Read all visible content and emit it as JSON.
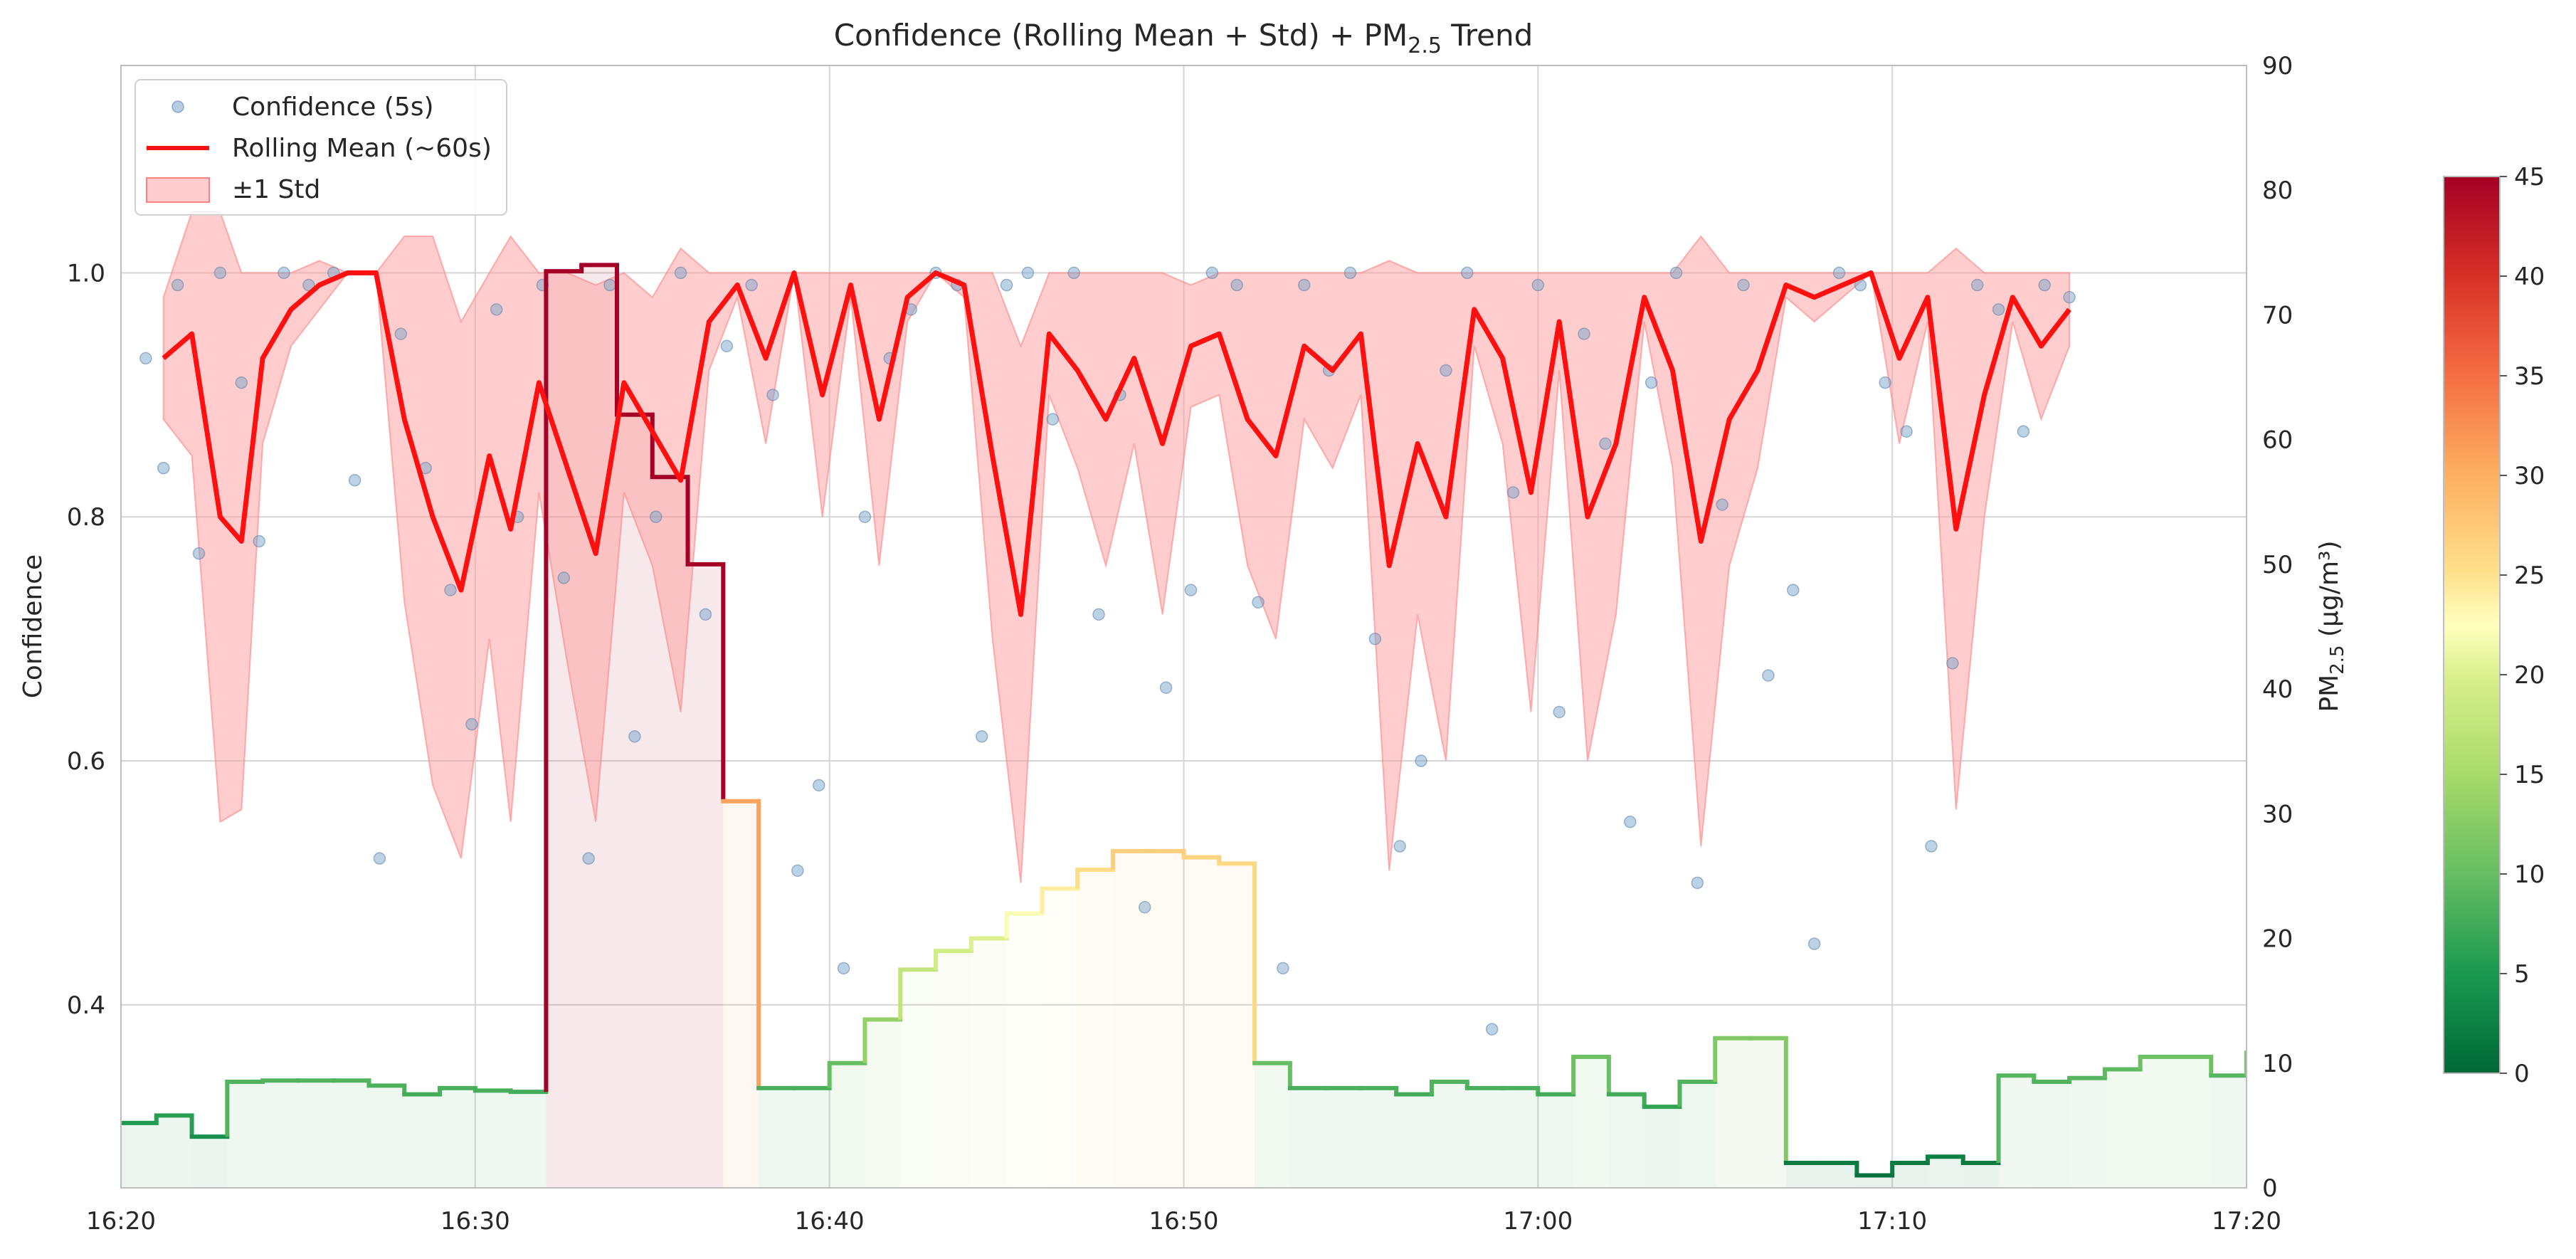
{
  "chart_data": {
    "type": "line",
    "title": "Confidence (Rolling Mean + Std) + PM",
    "title_sub": "2.5",
    "title_suffix": " Trend",
    "xlabel": "",
    "ylabel": "Confidence",
    "y2label_prefix": "PM",
    "y2label_sub": "2.5",
    "y2label_suffix": " (μg/m³)",
    "x_tick_labels": [
      "16:20",
      "16:30",
      "16:40",
      "16:50",
      "17:00",
      "17:10",
      "17:20"
    ],
    "xlim_minutes": [
      0,
      60
    ],
    "ylim": [
      0.25,
      1.17
    ],
    "y_ticks": [
      "0.4",
      "0.6",
      "0.8",
      "1.0"
    ],
    "y2lim": [
      0,
      90
    ],
    "y2_ticks": [
      "0",
      "10",
      "20",
      "30",
      "40",
      "50",
      "60",
      "70",
      "80",
      "90"
    ],
    "grid": true,
    "legend_position": "top-left",
    "colorbar": {
      "range": [
        0,
        45
      ],
      "ticks": [
        "0",
        "5",
        "10",
        "15",
        "20",
        "25",
        "30",
        "35",
        "40",
        "45"
      ],
      "colormap": "RdYlGn_r"
    },
    "colors": {
      "scatter": "#7aa5cc",
      "rolling_mean": "#ff1010",
      "std_band": "#ff9c9c"
    },
    "series": [
      {
        "name": "Confidence (5s)",
        "kind": "scatter",
        "x_minutes": [
          0.7,
          1.2,
          1.6,
          2.2,
          2.8,
          3.4,
          3.9,
          4.6,
          5.3,
          6.0,
          6.6,
          7.3,
          7.9,
          8.6,
          9.3,
          9.9,
          10.6,
          11.2,
          11.9,
          12.5,
          13.2,
          13.8,
          14.5,
          15.1,
          15.8,
          16.5,
          17.1,
          17.8,
          18.4,
          19.1,
          19.7,
          20.4,
          21.0,
          21.7,
          22.3,
          23.0,
          23.6,
          24.3,
          25.0,
          25.6,
          26.3,
          26.9,
          27.6,
          28.2,
          28.9,
          29.5,
          30.2,
          30.8,
          31.5,
          32.1,
          32.8,
          33.4,
          34.1,
          34.7,
          35.4,
          36.1,
          36.7,
          37.4,
          38.0,
          38.7,
          39.3,
          40.0,
          40.6,
          41.3,
          41.9,
          42.6,
          43.2,
          43.9,
          44.5,
          45.2,
          45.8,
          46.5,
          47.2,
          47.8,
          48.5,
          49.1,
          49.8,
          50.4,
          51.1,
          51.7,
          52.4,
          53.0,
          53.7,
          54.3,
          55.0
        ],
        "y": [
          0.93,
          0.84,
          0.99,
          0.77,
          1.0,
          0.91,
          0.78,
          1.0,
          0.99,
          1.0,
          0.83,
          0.52,
          0.95,
          0.84,
          0.74,
          0.63,
          0.97,
          0.8,
          0.99,
          0.75,
          0.52,
          0.99,
          0.62,
          0.8,
          1.0,
          0.72,
          0.94,
          0.99,
          0.9,
          0.51,
          0.58,
          0.43,
          0.8,
          0.93,
          0.97,
          1.0,
          0.99,
          0.62,
          0.99,
          1.0,
          0.88,
          1.0,
          0.72,
          0.9,
          0.48,
          0.66,
          0.74,
          1.0,
          0.99,
          0.73,
          0.43,
          0.99,
          0.92,
          1.0,
          0.7,
          0.53,
          0.6,
          0.92,
          1.0,
          0.38,
          0.82,
          0.99,
          0.64,
          0.95,
          0.86,
          0.55,
          0.91,
          1.0,
          0.5,
          0.81,
          0.99,
          0.67,
          0.74,
          0.45,
          1.0,
          0.99,
          0.91,
          0.87,
          0.53,
          0.68,
          0.99,
          0.97,
          0.87,
          0.99,
          0.98
        ]
      },
      {
        "name": "Rolling Mean (~60s)",
        "kind": "line",
        "x_minutes": [
          1.2,
          2.0,
          2.8,
          3.4,
          4.0,
          4.8,
          5.6,
          6.4,
          7.2,
          8.0,
          8.8,
          9.6,
          10.4,
          11.0,
          11.8,
          12.6,
          13.4,
          14.2,
          15.0,
          15.8,
          16.6,
          17.4,
          18.2,
          19.0,
          19.8,
          20.6,
          21.4,
          22.2,
          23.0,
          23.8,
          24.6,
          25.4,
          26.2,
          27.0,
          27.8,
          28.6,
          29.4,
          30.2,
          31.0,
          31.8,
          32.6,
          33.4,
          34.2,
          35.0,
          35.8,
          36.6,
          37.4,
          38.2,
          39.0,
          39.8,
          40.6,
          41.4,
          42.2,
          43.0,
          43.8,
          44.6,
          45.4,
          46.2,
          47.0,
          47.8,
          48.6,
          49.4,
          50.2,
          51.0,
          51.8,
          52.6,
          53.4,
          54.2,
          55.0
        ],
        "y": [
          0.93,
          0.95,
          0.8,
          0.78,
          0.93,
          0.97,
          0.99,
          1.0,
          1.0,
          0.88,
          0.8,
          0.74,
          0.85,
          0.79,
          0.91,
          0.84,
          0.77,
          0.91,
          0.87,
          0.83,
          0.96,
          0.99,
          0.93,
          1.0,
          0.9,
          0.99,
          0.88,
          0.98,
          1.0,
          0.99,
          0.85,
          0.72,
          0.95,
          0.92,
          0.88,
          0.93,
          0.86,
          0.94,
          0.95,
          0.88,
          0.85,
          0.94,
          0.92,
          0.95,
          0.76,
          0.86,
          0.8,
          0.97,
          0.93,
          0.82,
          0.96,
          0.8,
          0.86,
          0.98,
          0.92,
          0.78,
          0.88,
          0.92,
          0.99,
          0.98,
          0.99,
          1.0,
          0.93,
          0.98,
          0.79,
          0.9,
          0.98,
          0.94,
          0.97
        ]
      },
      {
        "name": "±1 Std",
        "kind": "band",
        "x_minutes": [
          1.2,
          2.0,
          2.8,
          3.4,
          4.0,
          4.8,
          5.6,
          6.4,
          7.2,
          8.0,
          8.8,
          9.6,
          10.4,
          11.0,
          11.8,
          12.6,
          13.4,
          14.2,
          15.0,
          15.8,
          16.6,
          17.4,
          18.2,
          19.0,
          19.8,
          20.6,
          21.4,
          22.2,
          23.0,
          23.8,
          24.6,
          25.4,
          26.2,
          27.0,
          27.8,
          28.6,
          29.4,
          30.2,
          31.0,
          31.8,
          32.6,
          33.4,
          34.2,
          35.0,
          35.8,
          36.6,
          37.4,
          38.2,
          39.0,
          39.8,
          40.6,
          41.4,
          42.2,
          43.0,
          43.8,
          44.6,
          45.4,
          46.2,
          47.0,
          47.8,
          48.6,
          49.4,
          50.2,
          51.0,
          51.8,
          52.6,
          53.4,
          54.2,
          55.0
        ],
        "lower": [
          0.88,
          0.85,
          0.55,
          0.56,
          0.86,
          0.94,
          0.97,
          1.0,
          1.0,
          0.73,
          0.58,
          0.52,
          0.7,
          0.55,
          0.82,
          0.68,
          0.55,
          0.82,
          0.76,
          0.64,
          0.92,
          0.98,
          0.86,
          1.0,
          0.8,
          0.98,
          0.76,
          0.96,
          1.0,
          0.98,
          0.7,
          0.5,
          0.9,
          0.84,
          0.76,
          0.86,
          0.72,
          0.89,
          0.9,
          0.76,
          0.7,
          0.88,
          0.84,
          0.9,
          0.51,
          0.72,
          0.6,
          0.94,
          0.86,
          0.64,
          0.92,
          0.6,
          0.72,
          0.96,
          0.84,
          0.53,
          0.76,
          0.84,
          0.98,
          0.96,
          0.98,
          1.0,
          0.86,
          0.96,
          0.56,
          0.8,
          0.96,
          0.88,
          0.94
        ],
        "upper": [
          0.98,
          1.05,
          1.05,
          1.0,
          1.0,
          1.0,
          1.01,
          1.0,
          1.0,
          1.03,
          1.03,
          0.96,
          1.0,
          1.03,
          1.0,
          1.0,
          0.99,
          1.0,
          0.98,
          1.02,
          1.0,
          1.0,
          1.0,
          1.0,
          1.0,
          1.0,
          1.0,
          1.0,
          1.0,
          1.0,
          1.0,
          0.94,
          1.0,
          1.0,
          1.0,
          1.0,
          1.0,
          0.99,
          1.0,
          1.0,
          1.0,
          1.0,
          1.0,
          1.0,
          1.01,
          1.0,
          1.0,
          1.0,
          1.0,
          1.0,
          1.0,
          1.0,
          1.0,
          1.0,
          1.0,
          1.03,
          1.0,
          1.0,
          1.0,
          1.0,
          1.0,
          1.0,
          1.0,
          1.0,
          1.02,
          1.0,
          1.0,
          1.0,
          1.0
        ]
      },
      {
        "name": "PM2.5",
        "kind": "step",
        "axis": "right",
        "x_minutes": [
          0,
          1,
          2,
          3,
          4,
          5,
          6,
          7,
          8,
          9,
          10,
          11,
          12,
          13,
          14,
          15,
          16,
          17,
          18,
          19,
          20,
          21,
          22,
          23,
          24,
          25,
          26,
          27,
          28,
          29,
          30,
          31,
          32,
          33,
          34,
          35,
          36,
          37,
          38,
          39,
          40,
          41,
          42,
          43,
          44,
          45,
          46,
          47,
          48,
          49,
          50,
          51,
          52,
          53,
          54,
          55,
          56,
          57,
          58,
          59,
          60
        ],
        "y": [
          5.2,
          5.8,
          4.1,
          8.5,
          8.6,
          8.6,
          8.6,
          8.2,
          7.5,
          8.0,
          7.8,
          7.7,
          73.5,
          74.0,
          62.0,
          57.0,
          50.0,
          31.0,
          8.0,
          8.0,
          10.0,
          13.5,
          17.5,
          19.0,
          20.0,
          22.0,
          24.0,
          25.5,
          27.0,
          27.0,
          26.5,
          26.0,
          10.0,
          8.0,
          8.0,
          8.0,
          7.5,
          8.5,
          8.0,
          8.0,
          7.5,
          10.5,
          7.5,
          6.5,
          8.5,
          12.0,
          12.0,
          2.0,
          2.0,
          1.0,
          2.0,
          2.5,
          2.0,
          9.0,
          8.5,
          8.8,
          9.5,
          10.5,
          10.5,
          9.0,
          11.0
        ]
      }
    ]
  }
}
